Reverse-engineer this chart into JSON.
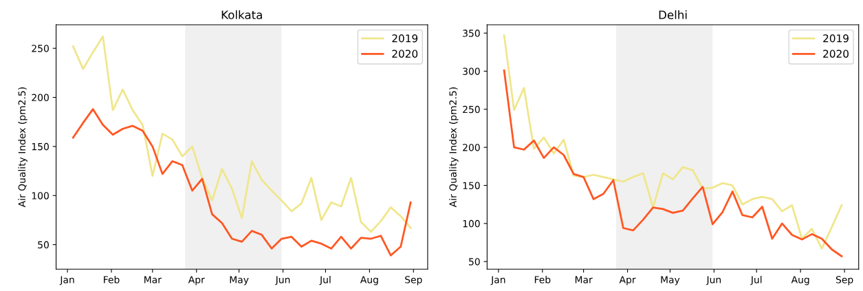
{
  "chart_data": [
    {
      "type": "line",
      "title": "Kolkata",
      "ylabel": "Air Quality Index (pm2.5)",
      "x": [
        "2020-01-05",
        "2020-01-12",
        "2020-01-19",
        "2020-01-26",
        "2020-02-02",
        "2020-02-09",
        "2020-02-16",
        "2020-02-23",
        "2020-03-01",
        "2020-03-08",
        "2020-03-15",
        "2020-03-22",
        "2020-03-29",
        "2020-04-05",
        "2020-04-12",
        "2020-04-19",
        "2020-04-26",
        "2020-05-03",
        "2020-05-10",
        "2020-05-17",
        "2020-05-24",
        "2020-05-31",
        "2020-06-07",
        "2020-06-14",
        "2020-06-21",
        "2020-06-28",
        "2020-07-05",
        "2020-07-12",
        "2020-07-19",
        "2020-07-26",
        "2020-08-02",
        "2020-08-09",
        "2020-08-16",
        "2020-08-23",
        "2020-08-30"
      ],
      "series": [
        {
          "name": "2019",
          "color": "#f0e68c",
          "values": [
            252,
            229,
            246,
            262,
            187,
            208,
            187,
            172,
            120,
            163,
            157,
            140,
            150,
            118,
            95,
            127,
            107,
            77,
            135,
            116,
            105,
            95,
            84,
            92,
            118,
            75,
            93,
            89,
            118,
            73,
            63,
            74,
            88,
            79,
            67
          ]
        },
        {
          "name": "2020",
          "color": "#ff5722",
          "values": [
            159,
            174,
            188,
            172,
            162,
            168,
            171,
            166,
            150,
            122,
            135,
            131,
            105,
            117,
            81,
            72,
            56,
            53,
            64,
            60,
            46,
            56,
            58,
            48,
            54,
            51,
            46,
            58,
            46,
            57,
            56,
            59,
            39,
            48,
            93
          ]
        }
      ],
      "xlim": [
        "2019-12-24",
        "2020-09-11"
      ],
      "xticks": [
        {
          "value": "2020-01-01",
          "label": "Jan"
        },
        {
          "value": "2020-02-01",
          "label": "Feb"
        },
        {
          "value": "2020-03-01",
          "label": "Mar"
        },
        {
          "value": "2020-04-01",
          "label": "Apr"
        },
        {
          "value": "2020-05-01",
          "label": "May"
        },
        {
          "value": "2020-06-01",
          "label": "Jun"
        },
        {
          "value": "2020-07-01",
          "label": "Jul"
        },
        {
          "value": "2020-08-01",
          "label": "Aug"
        },
        {
          "value": "2020-09-01",
          "label": "Sep"
        }
      ],
      "ylim": [
        25,
        274
      ],
      "yticks": [
        50,
        100,
        150,
        200,
        250
      ],
      "bands": [
        {
          "axis": "x",
          "from": "2020-03-24",
          "to": "2020-05-31",
          "color": "#f0f0f0"
        }
      ],
      "grid": false,
      "legend": "top right",
      "line_style": "solid",
      "marker": "none"
    },
    {
      "type": "line",
      "title": "Delhi",
      "ylabel": "Air Quality Index (pm2.5)",
      "x": [
        "2020-01-05",
        "2020-01-12",
        "2020-01-19",
        "2020-01-26",
        "2020-02-02",
        "2020-02-09",
        "2020-02-16",
        "2020-02-23",
        "2020-03-01",
        "2020-03-08",
        "2020-03-15",
        "2020-03-22",
        "2020-03-29",
        "2020-04-05",
        "2020-04-12",
        "2020-04-19",
        "2020-04-26",
        "2020-05-03",
        "2020-05-10",
        "2020-05-17",
        "2020-05-24",
        "2020-05-31",
        "2020-06-07",
        "2020-06-14",
        "2020-06-21",
        "2020-06-28",
        "2020-07-05",
        "2020-07-12",
        "2020-07-19",
        "2020-07-26",
        "2020-08-02",
        "2020-08-09",
        "2020-08-16",
        "2020-08-23",
        "2020-08-30"
      ],
      "series": [
        {
          "name": "2019",
          "color": "#f0e68c",
          "values": [
            347,
            249,
            278,
            198,
            213,
            192,
            210,
            163,
            161,
            164,
            161,
            158,
            155,
            161,
            166,
            121,
            166,
            158,
            174,
            170,
            146,
            147,
            153,
            150,
            125,
            132,
            135,
            132,
            116,
            124,
            80,
            93,
            67,
            95,
            124
          ]
        },
        {
          "name": "2020",
          "color": "#ff5722",
          "values": [
            301,
            200,
            197,
            209,
            186,
            200,
            190,
            165,
            161,
            132,
            139,
            157,
            94,
            91,
            105,
            121,
            119,
            114,
            117,
            133,
            148,
            99,
            115,
            142,
            111,
            108,
            122,
            80,
            100,
            85,
            79,
            86,
            80,
            66,
            57
          ]
        }
      ],
      "xlim": [
        "2019-12-24",
        "2020-09-11"
      ],
      "xticks": [
        {
          "value": "2020-01-01",
          "label": "Jan"
        },
        {
          "value": "2020-02-01",
          "label": "Feb"
        },
        {
          "value": "2020-03-01",
          "label": "Mar"
        },
        {
          "value": "2020-04-01",
          "label": "Apr"
        },
        {
          "value": "2020-05-01",
          "label": "May"
        },
        {
          "value": "2020-06-01",
          "label": "Jun"
        },
        {
          "value": "2020-07-01",
          "label": "Jul"
        },
        {
          "value": "2020-08-01",
          "label": "Aug"
        },
        {
          "value": "2020-09-01",
          "label": "Sep"
        }
      ],
      "ylim": [
        40,
        361
      ],
      "yticks": [
        50,
        100,
        150,
        200,
        250,
        300,
        350
      ],
      "bands": [
        {
          "axis": "x",
          "from": "2020-03-24",
          "to": "2020-05-31",
          "color": "#f0f0f0"
        }
      ],
      "grid": false,
      "legend": "top right",
      "line_style": "solid",
      "marker": "none"
    }
  ]
}
